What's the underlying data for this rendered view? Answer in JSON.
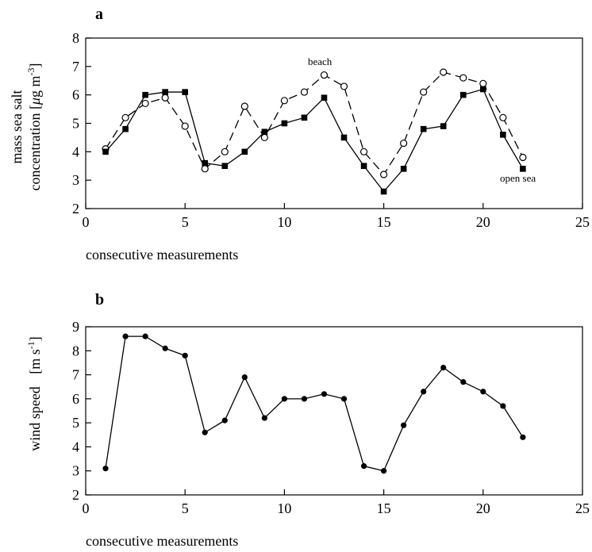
{
  "chart_data": [
    {
      "type": "line",
      "panel_label": "a",
      "ylabel_line1": "mass sea salt",
      "ylabel_line2": "concentration  [",
      "ylabel_mu": "μ",
      "ylabel_unit": "g m",
      "ylabel_exp": "-3",
      "ylabel_close": "]",
      "xlabel": "consecutive measurements",
      "xlim": [
        0,
        25
      ],
      "ylim": [
        2,
        8
      ],
      "xticks": [
        0,
        5,
        10,
        15,
        20,
        25
      ],
      "yticks": [
        2,
        3,
        4,
        5,
        6,
        7,
        8
      ],
      "annotations": {
        "beach": "beach",
        "open_sea": "open sea"
      },
      "series": [
        {
          "name": "beach",
          "marker": "open-circle",
          "line": "dashed",
          "x": [
            1,
            2,
            3,
            4,
            5,
            6,
            7,
            8,
            9,
            10,
            11,
            12,
            13,
            14,
            15,
            16,
            17,
            18,
            19,
            20,
            21,
            22
          ],
          "y": [
            4.1,
            5.2,
            5.7,
            5.9,
            4.9,
            3.4,
            4.0,
            5.6,
            4.5,
            5.8,
            6.1,
            6.7,
            6.3,
            4.0,
            3.2,
            4.3,
            6.1,
            6.8,
            6.6,
            6.4,
            5.2,
            3.8
          ]
        },
        {
          "name": "open sea",
          "marker": "filled-square",
          "line": "solid",
          "x": [
            1,
            2,
            3,
            4,
            5,
            6,
            7,
            8,
            9,
            10,
            11,
            12,
            13,
            14,
            15,
            16,
            17,
            18,
            19,
            20,
            21,
            22
          ],
          "y": [
            4.0,
            4.8,
            6.0,
            6.1,
            6.1,
            3.6,
            3.5,
            4.0,
            4.7,
            5.0,
            5.2,
            5.9,
            4.5,
            3.5,
            2.6,
            3.4,
            4.8,
            4.9,
            6.0,
            6.2,
            4.6,
            3.4
          ]
        }
      ]
    },
    {
      "type": "line",
      "panel_label": "b",
      "ylabel_line1": "wind speed",
      "ylabel_unit_open": "[m s",
      "ylabel_exp": "-1",
      "ylabel_close": "]",
      "xlabel": "consecutive measurements",
      "xlim": [
        0,
        25
      ],
      "ylim": [
        2,
        9
      ],
      "xticks": [
        0,
        5,
        10,
        15,
        20,
        25
      ],
      "yticks": [
        2,
        3,
        4,
        5,
        6,
        7,
        8,
        9
      ],
      "series": [
        {
          "marker": "filled-circle",
          "line": "solid",
          "x": [
            1,
            2,
            3,
            4,
            5,
            6,
            7,
            8,
            9,
            10,
            11,
            12,
            13,
            14,
            15,
            16,
            17,
            18,
            19,
            20,
            21,
            22
          ],
          "y": [
            3.1,
            8.6,
            8.6,
            8.1,
            7.8,
            4.6,
            5.1,
            6.9,
            5.2,
            6.0,
            6.0,
            6.2,
            6.0,
            3.2,
            3.0,
            4.9,
            6.3,
            7.3,
            6.7,
            6.3,
            5.7,
            4.4
          ]
        }
      ]
    }
  ]
}
